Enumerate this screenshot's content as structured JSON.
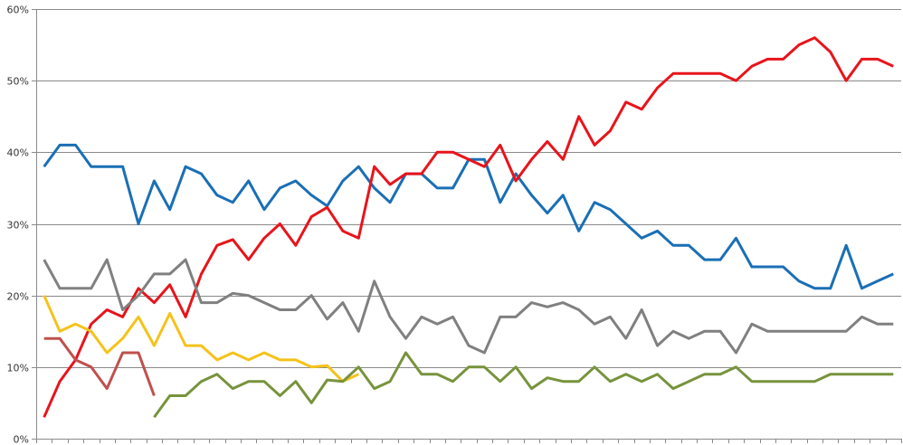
{
  "chart_data": {
    "type": "line",
    "title": "",
    "xlabel": "",
    "ylabel": "",
    "ylim": [
      0,
      60
    ],
    "yticks": [
      "0%",
      "10%",
      "20%",
      "30%",
      "40%",
      "50%",
      "60%"
    ],
    "grid": "horizontal",
    "legend": "none",
    "x_count": 55,
    "series": [
      {
        "name": "blue",
        "color": "#1a6fb5",
        "start": 0,
        "values": [
          38,
          41,
          41,
          38,
          38,
          38,
          30,
          36,
          32,
          38,
          37,
          34,
          33,
          36,
          32,
          35,
          36,
          34,
          32.5,
          36,
          38,
          35,
          33,
          37,
          37,
          35,
          35,
          39,
          39,
          33,
          37,
          34,
          31.5,
          34,
          29,
          33,
          32,
          30,
          28,
          29,
          27,
          27,
          25,
          25,
          28,
          24,
          24,
          24,
          22,
          21,
          21,
          27,
          21,
          22,
          23
        ]
      },
      {
        "name": "red",
        "color": "#e8141b",
        "start": 0,
        "values": [
          3,
          8,
          11,
          16,
          18,
          17,
          21,
          19,
          21.5,
          17,
          23,
          27,
          27.8,
          25,
          28,
          30,
          27,
          31,
          32.3,
          29,
          28,
          38,
          35.5,
          37,
          37,
          40,
          40,
          39,
          38,
          41,
          36,
          39,
          41.5,
          39,
          45,
          41,
          43,
          47,
          46,
          49,
          51,
          51,
          51,
          51,
          50,
          52,
          53,
          53,
          55,
          56,
          54,
          50,
          53,
          53,
          52
        ]
      },
      {
        "name": "grey",
        "color": "#808080",
        "start": 0,
        "values": [
          25,
          21,
          21,
          21,
          25,
          18,
          20,
          23,
          23,
          25,
          19,
          19,
          20.3,
          20,
          19,
          18,
          18,
          20,
          16.7,
          19,
          15,
          22,
          17,
          14,
          17,
          16,
          17,
          13,
          12,
          17,
          17,
          19,
          18.4,
          19,
          18,
          16,
          17,
          14,
          18,
          13,
          15,
          14,
          15,
          15,
          12,
          16,
          15,
          15,
          15,
          15,
          15,
          15,
          17,
          16,
          16
        ]
      },
      {
        "name": "yellow",
        "color": "#f5c21a",
        "start": 0,
        "values": [
          20,
          15,
          16,
          15,
          12,
          14,
          17,
          13,
          17.5,
          13,
          13,
          11,
          12,
          11,
          12,
          11,
          11,
          10,
          10.2,
          8,
          9
        ]
      },
      {
        "name": "brown",
        "color": "#c0504d",
        "start": 0,
        "values": [
          14,
          14,
          11,
          10,
          7,
          12,
          12,
          6
        ]
      },
      {
        "name": "green",
        "color": "#77933c",
        "start": 7,
        "values": [
          3,
          6,
          6,
          8,
          9,
          7,
          8,
          8,
          6,
          8,
          5,
          8.2,
          8,
          10,
          7,
          8,
          12,
          9,
          9,
          8,
          10,
          10,
          8,
          10,
          7,
          8.5,
          8,
          8,
          10,
          8,
          9,
          8,
          9,
          7,
          8,
          9,
          9,
          10,
          8,
          8,
          8,
          8,
          8,
          9,
          9,
          9,
          9,
          9
        ]
      }
    ]
  }
}
